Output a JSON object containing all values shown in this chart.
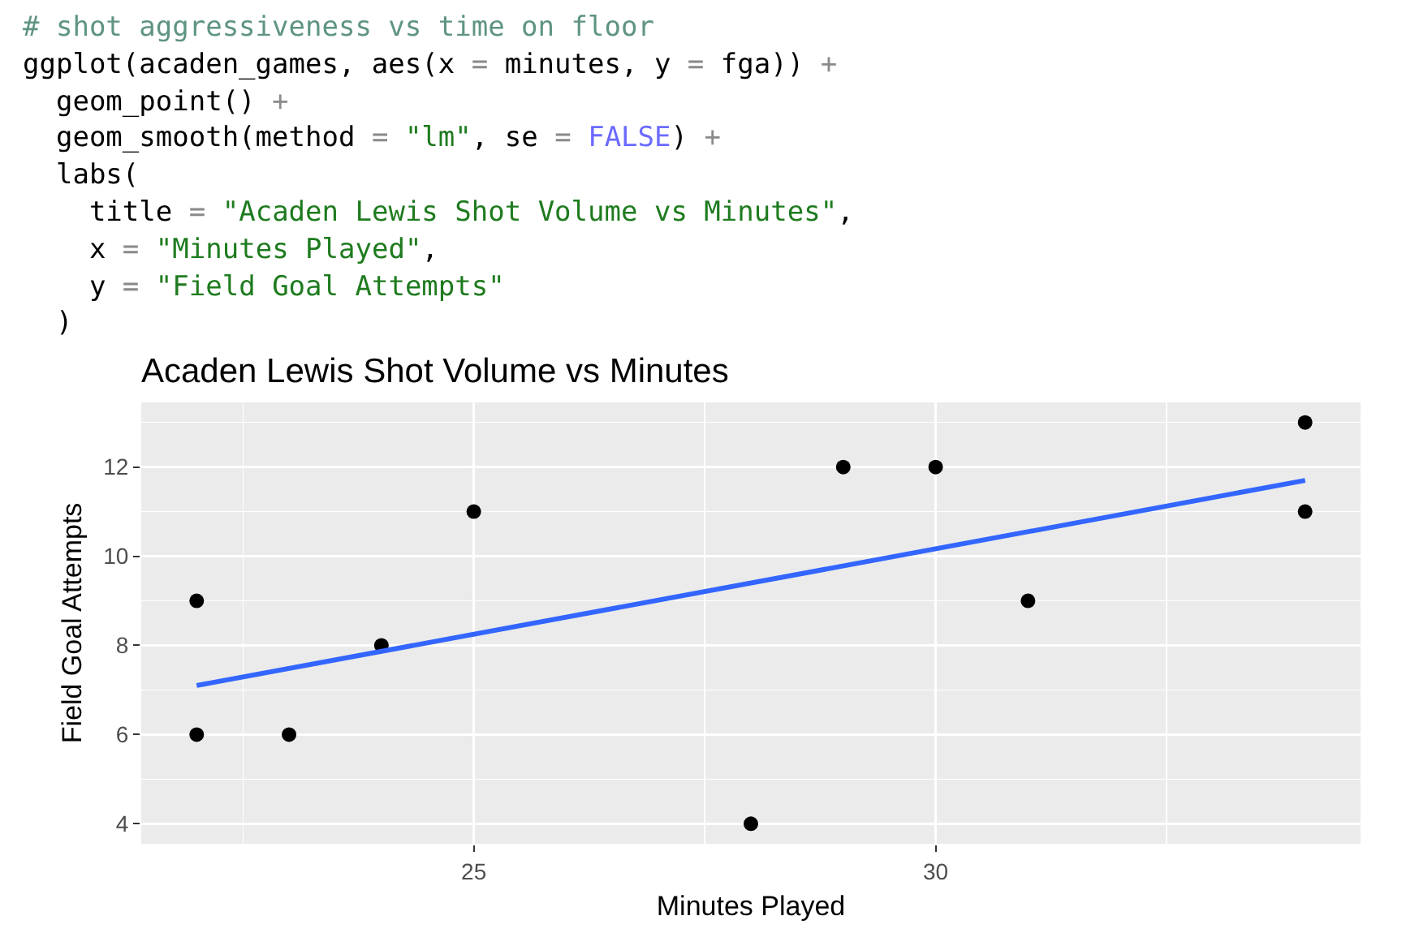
{
  "chart_data": {
    "type": "scatter",
    "title": "Acaden Lewis Shot Volume vs Minutes",
    "xlabel": "Minutes Played",
    "ylabel": "Field Goal Attempts",
    "annotations": [
      "# shot aggressiveness vs time on floor",
      "ggplot(acaden_games, aes(x = minutes, y = fga)) +",
      "  geom_point() +",
      "  geom_smooth(method = \"lm\", se = FALSE) +",
      "  labs(",
      "    title = \"Acaden Lewis Shot Volume vs Minutes\",",
      "    x = \"Minutes Played\",",
      "    y = \"Field Goal Attempts\"",
      "  )"
    ],
    "series": [
      {
        "color": "#000000",
        "marker": "circle",
        "x": [
          22,
          22,
          23,
          24,
          25,
          28,
          29,
          30,
          31,
          34,
          34
        ],
        "values": [
          9,
          6,
          6,
          8,
          11,
          4,
          12,
          12,
          9,
          13,
          11
        ]
      },
      {
        "type": "line",
        "color": "#3366ff",
        "marker": "none",
        "line_style": "solid",
        "x": [
          22,
          34
        ],
        "values": [
          7.1,
          11.7
        ]
      }
    ],
    "xlim": [
      21.4,
      34.6
    ],
    "ylim": [
      3.55,
      13.45
    ],
    "xticks": [
      25,
      30
    ],
    "yticks": [
      4,
      6,
      8,
      10,
      12
    ],
    "grid": true
  }
}
